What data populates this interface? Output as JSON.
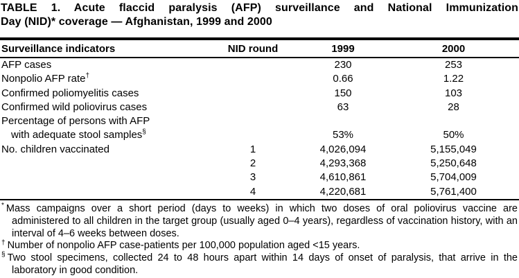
{
  "title": {
    "line1": "TABLE 1. Acute flaccid paralysis (AFP) surveillance and National Immunization",
    "line2": "Day (NID)* coverage — Afghanistan, 1999 and 2000"
  },
  "columns": [
    "Surveillance indicators",
    "NID round",
    "1999",
    "2000"
  ],
  "rows": [
    {
      "label": "AFP cases",
      "marker": "",
      "nid": "",
      "y1999": "230",
      "y2000": "253"
    },
    {
      "label": "Nonpolio AFP rate",
      "marker": "†",
      "nid": "",
      "y1999": "0.66",
      "y2000": "1.22"
    },
    {
      "label": "Confirmed poliomyelitis cases",
      "marker": "",
      "nid": "",
      "y1999": "150",
      "y2000": "103"
    },
    {
      "label": "Confirmed wild poliovirus cases",
      "marker": "",
      "nid": "",
      "y1999": "63",
      "y2000": "28"
    },
    {
      "label": "Percentage of persons with AFP",
      "marker": "",
      "nid": "",
      "y1999": "",
      "y2000": ""
    },
    {
      "label": "with adequate stool samples",
      "marker": "§",
      "nid": "",
      "y1999": "53%",
      "y2000": "50%"
    },
    {
      "label": "No. children vaccinated",
      "marker": "",
      "nid": "1",
      "y1999": "4,026,094",
      "y2000": "5,155,049"
    },
    {
      "label": "",
      "marker": "",
      "nid": "2",
      "y1999": "4,293,368",
      "y2000": "5,250,648"
    },
    {
      "label": "",
      "marker": "",
      "nid": "3",
      "y1999": "4,610,861",
      "y2000": "5,704,009"
    },
    {
      "label": "",
      "marker": "",
      "nid": "4",
      "y1999": "4,220,681",
      "y2000": "5,761,400"
    }
  ],
  "footnotes": [
    {
      "marker": "*",
      "text": "Mass campaigns over a short period (days to weeks) in which two doses of oral poliovirus vaccine are administered to all children in the target group (usually aged 0–4 years), regardless of vaccination history, with an interval of 4–6 weeks between doses."
    },
    {
      "marker": "†",
      "text": "Number of nonpolio AFP case-patients per 100,000 population aged <15 years."
    },
    {
      "marker": "§",
      "text": "Two stool specimens, collected 24 to 48 hours apart within 14 days of onset of paralysis, that arrive in the laboratory in good condition."
    }
  ]
}
